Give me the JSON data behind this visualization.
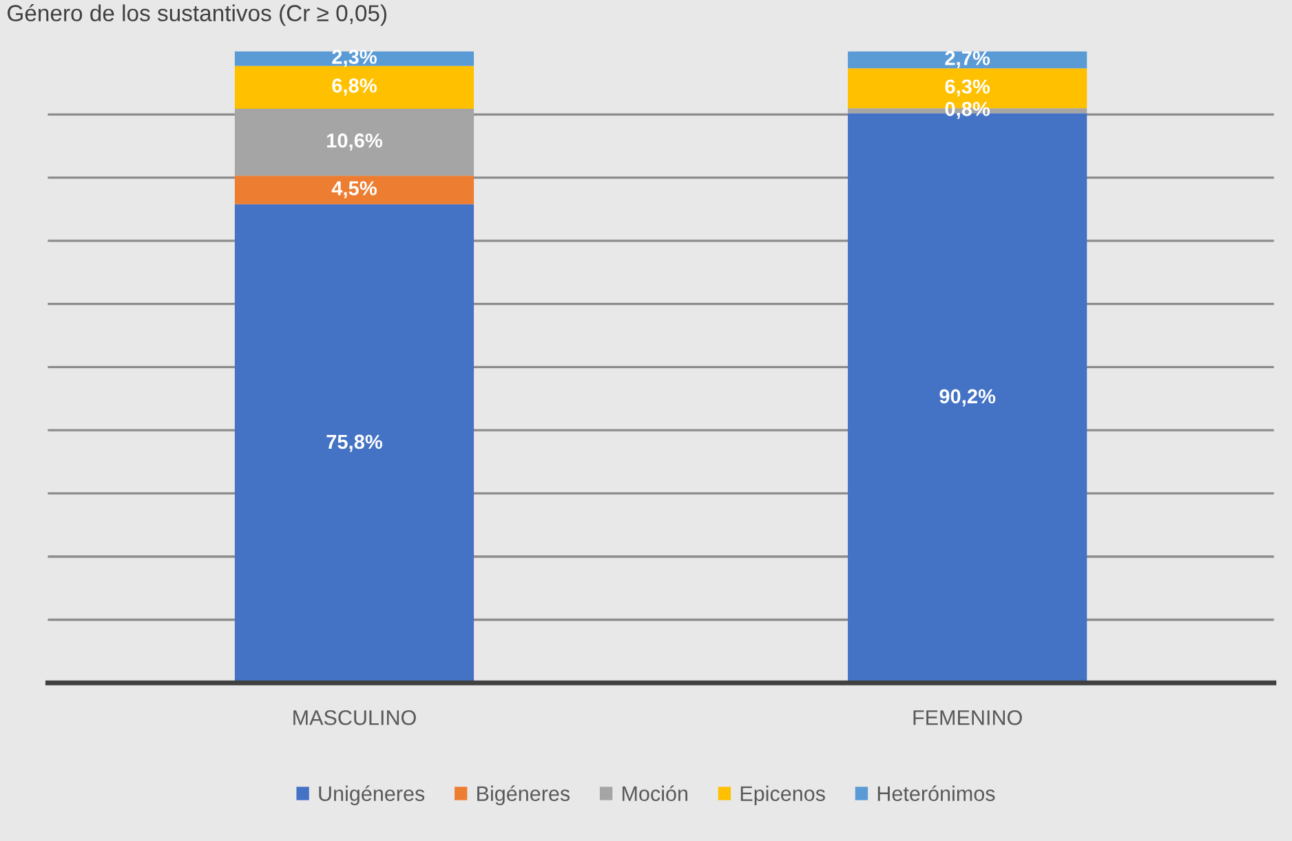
{
  "chart_data": {
    "type": "bar",
    "title": "Género de los sustantivos (Cr ≥ 0,05)",
    "categories": [
      "MASCULINO",
      "FEMENINO"
    ],
    "stacked": true,
    "series": [
      {
        "name": "Unigéneres",
        "color": "#4472c4",
        "values": [
          75.8,
          90.2
        ],
        "value_labels": [
          "75,8%",
          "90,2%"
        ]
      },
      {
        "name": "Bigéneres",
        "color": "#ed7d31",
        "values": [
          4.5,
          null
        ],
        "value_labels": [
          "4,5%",
          null
        ]
      },
      {
        "name": "Moción",
        "color": "#a5a5a5",
        "values": [
          10.6,
          0.8
        ],
        "value_labels": [
          "10,6%",
          "0,8%"
        ]
      },
      {
        "name": "Epicenos",
        "color": "#ffc000",
        "values": [
          6.8,
          6.3
        ],
        "value_labels": [
          "6,8%",
          "6,3%"
        ]
      },
      {
        "name": "Heterónimos",
        "color": "#5b9bd5",
        "values": [
          2.3,
          2.7
        ],
        "value_labels": [
          "2,3%",
          "2,7%"
        ]
      }
    ],
    "ylim": [
      0,
      100
    ],
    "yticks": [
      {
        "value": 0,
        "label": null
      },
      {
        "value": 10,
        "label": null
      },
      {
        "value": 20,
        "label": null
      },
      {
        "value": 30,
        "label": null
      },
      {
        "value": 40,
        "label": null
      },
      {
        "value": 50,
        "label": null
      },
      {
        "value": 60,
        "label": null
      },
      {
        "value": 70,
        "label": null
      },
      {
        "value": 80,
        "label": null
      },
      {
        "value": 90,
        "label": null
      }
    ],
    "grid": "y",
    "tick_labels": "x",
    "legend": "bottom"
  }
}
